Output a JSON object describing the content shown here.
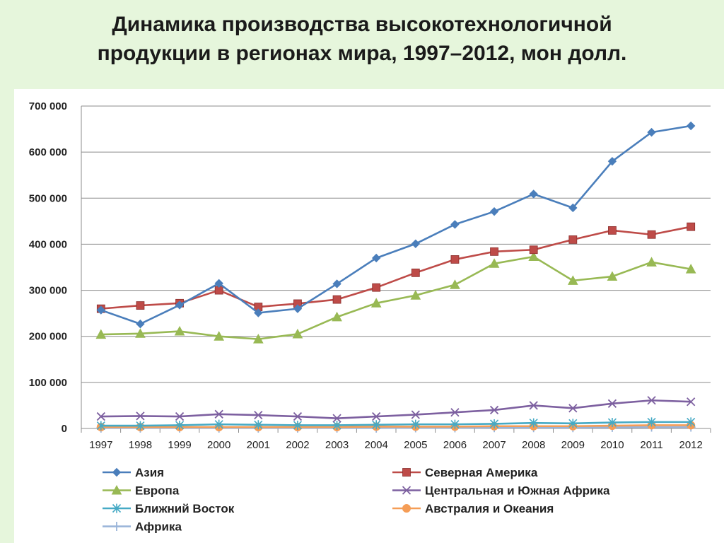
{
  "title": {
    "line1": "Динамика производства высокотехнологичной",
    "line2": "продукции в регионах  мира, 1997–2012, мон долл."
  },
  "chart_data": {
    "type": "line",
    "title": "Динамика производства высокотехнологичной продукции в регионах  мира, 1997–2012, мон долл.",
    "x": [
      "1997",
      "1998",
      "1999",
      "2000",
      "2001",
      "2002",
      "2003",
      "2004",
      "2005",
      "2006",
      "2007",
      "2008",
      "2009",
      "2010",
      "2011",
      "2012"
    ],
    "ylim": [
      0,
      700000
    ],
    "yticks": [
      0,
      100000,
      200000,
      300000,
      400000,
      500000,
      600000,
      700000
    ],
    "ytick_labels": [
      "0",
      "100 000",
      "200 000",
      "300 000",
      "400 000",
      "500 000",
      "600 000",
      "700 000"
    ],
    "grid": "horizontal",
    "legend_position": "bottom",
    "series": [
      {
        "name": "Азия",
        "color": "#4a7ebb",
        "marker": "diamond",
        "values": [
          257000,
          227000,
          268000,
          315000,
          251000,
          260000,
          314000,
          370000,
          401000,
          443000,
          471000,
          509000,
          479000,
          580000,
          643000,
          657000
        ]
      },
      {
        "name": "Северная Америка",
        "color": "#be4b48",
        "marker": "square",
        "values": [
          260000,
          267000,
          272000,
          300000,
          264000,
          271000,
          280000,
          306000,
          338000,
          367000,
          384000,
          388000,
          410000,
          430000,
          421000,
          438000
        ]
      },
      {
        "name": "Европа",
        "color": "#98b954",
        "marker": "triangle",
        "values": [
          204000,
          206000,
          211000,
          200000,
          194000,
          205000,
          242000,
          272000,
          289000,
          312000,
          358000,
          373000,
          321000,
          330000,
          361000,
          346000
        ]
      },
      {
        "name": "Центральная и Южная Африка",
        "color": "#7d60a0",
        "marker": "x",
        "values": [
          26000,
          27000,
          26000,
          31000,
          29000,
          26000,
          22000,
          26000,
          30000,
          35000,
          40000,
          50000,
          44000,
          54000,
          61000,
          58000
        ]
      },
      {
        "name": "Ближний Восток",
        "color": "#46aac5",
        "marker": "asterisk",
        "values": [
          6000,
          6000,
          7000,
          9000,
          8000,
          7000,
          7000,
          8000,
          9000,
          9000,
          10000,
          12000,
          11000,
          13000,
          14000,
          14000
        ]
      },
      {
        "name": "Австралия и Океания",
        "color": "#f59d56",
        "marker": "circle",
        "values": [
          3000,
          3000,
          3000,
          3000,
          3000,
          3000,
          3000,
          4000,
          4000,
          4000,
          5000,
          5000,
          5000,
          6000,
          7000,
          7000
        ]
      },
      {
        "name": "Африка",
        "color": "#99b4d9",
        "marker": "plus",
        "values": [
          1000,
          1000,
          1000,
          1000,
          1000,
          1000,
          1000,
          1000,
          1500,
          1500,
          2000,
          2000,
          2000,
          2500,
          3000,
          3000
        ]
      }
    ]
  }
}
